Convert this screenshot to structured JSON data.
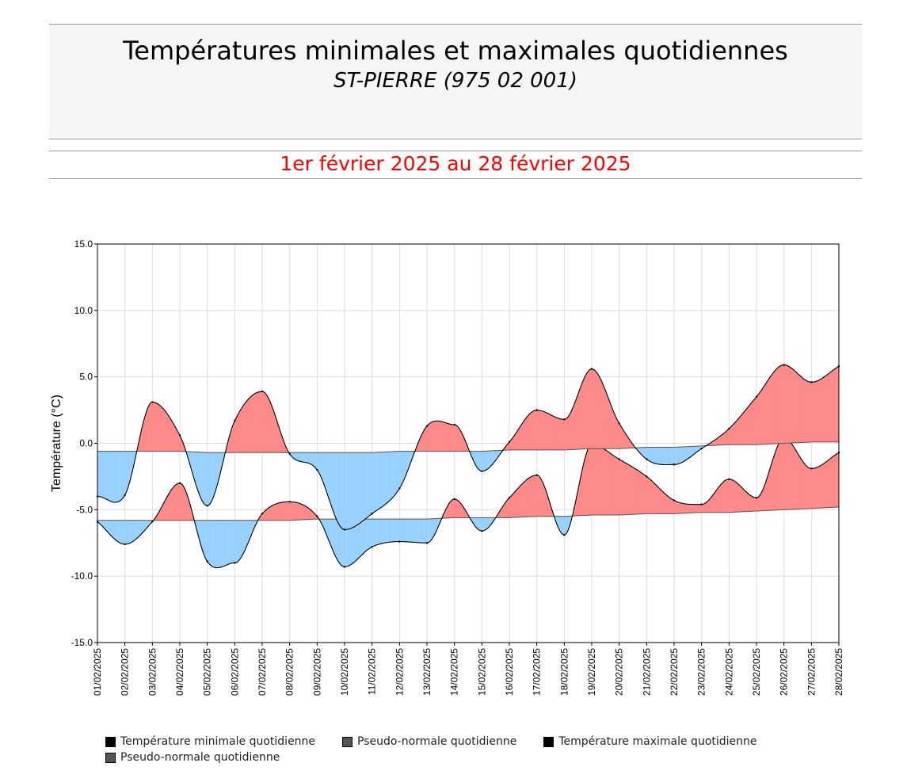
{
  "header": {
    "title": "Températures minimales et maximales quotidiennes",
    "station": "ST-PIERRE (975 02 001)"
  },
  "period": {
    "label": "1er février 2025 au 28 février 2025",
    "color": "#ff0000"
  },
  "colors": {
    "above_normal": "#ff8a8a",
    "below_normal": "#99d1fb",
    "curve": "#000000",
    "normal_line": "#555555",
    "grid": "#dddddd"
  },
  "chart_data": {
    "type": "area",
    "title": "Températures minimales et maximales quotidiennes",
    "xlabel": "",
    "ylabel": "Température (°C)",
    "ylim": [
      -15,
      15
    ],
    "yticks": [
      -15,
      -10,
      -5,
      0,
      5,
      10,
      15
    ],
    "ytick_labels": [
      "-15.0",
      "-10.0",
      "-5.0",
      "0.0",
      "5.0",
      "10.0",
      "15.0"
    ],
    "grid": true,
    "categories": [
      "01/02/2025",
      "02/02/2025",
      "03/02/2025",
      "04/02/2025",
      "05/02/2025",
      "06/02/2025",
      "07/02/2025",
      "08/02/2025",
      "09/02/2025",
      "10/02/2025",
      "11/02/2025",
      "12/02/2025",
      "13/02/2025",
      "14/02/2025",
      "15/02/2025",
      "16/02/2025",
      "17/02/2025",
      "18/02/2025",
      "19/02/2025",
      "20/02/2025",
      "21/02/2025",
      "22/02/2025",
      "23/02/2025",
      "24/02/2025",
      "25/02/2025",
      "26/02/2025",
      "27/02/2025",
      "28/02/2025"
    ],
    "series": [
      {
        "name": "Température minimale quotidienne",
        "values": [
          -5.9,
          -7.6,
          -5.9,
          -3.0,
          -8.9,
          -9.0,
          -5.3,
          -4.4,
          -5.5,
          -9.3,
          -7.8,
          -7.4,
          -7.5,
          -4.2,
          -6.6,
          -4.1,
          -2.4,
          -6.9,
          -0.1,
          -1.2,
          -2.5,
          -4.3,
          -4.6,
          -2.7,
          -4.1,
          0.4,
          -1.9,
          -0.7
        ]
      },
      {
        "name": "Pseudo-normale quotidienne",
        "values": [
          -5.8,
          -5.8,
          -5.8,
          -5.8,
          -5.8,
          -5.8,
          -5.8,
          -5.8,
          -5.7,
          -5.7,
          -5.7,
          -5.7,
          -5.7,
          -5.6,
          -5.6,
          -5.6,
          -5.5,
          -5.5,
          -5.4,
          -5.4,
          -5.3,
          -5.3,
          -5.2,
          -5.2,
          -5.1,
          -5.0,
          -4.9,
          -4.8
        ]
      },
      {
        "name": "Température maximale quotidienne",
        "values": [
          -4.0,
          -3.9,
          3.1,
          0.6,
          -4.7,
          1.7,
          3.9,
          -0.8,
          -2.0,
          -6.5,
          -5.3,
          -3.4,
          1.3,
          1.4,
          -2.1,
          0.1,
          2.5,
          1.8,
          5.6,
          1.5,
          -1.2,
          -1.6,
          -0.4,
          1.1,
          3.5,
          5.9,
          4.6,
          5.8
        ]
      },
      {
        "name": "Pseudo-normale quotidienne",
        "values": [
          -0.6,
          -0.6,
          -0.6,
          -0.6,
          -0.7,
          -0.7,
          -0.7,
          -0.7,
          -0.7,
          -0.7,
          -0.7,
          -0.6,
          -0.6,
          -0.6,
          -0.6,
          -0.5,
          -0.5,
          -0.5,
          -0.4,
          -0.4,
          -0.3,
          -0.3,
          -0.2,
          -0.1,
          -0.1,
          0.0,
          0.1,
          0.1
        ]
      }
    ],
    "legend": [
      {
        "label": "Température minimale quotidienne",
        "color": "#000000"
      },
      {
        "label": "Pseudo-normale quotidienne",
        "color": "#555555"
      },
      {
        "label": "Température maximale quotidienne",
        "color": "#000000"
      },
      {
        "label": "Pseudo-normale quotidienne",
        "color": "#555555"
      }
    ],
    "legend_position": "bottom"
  }
}
